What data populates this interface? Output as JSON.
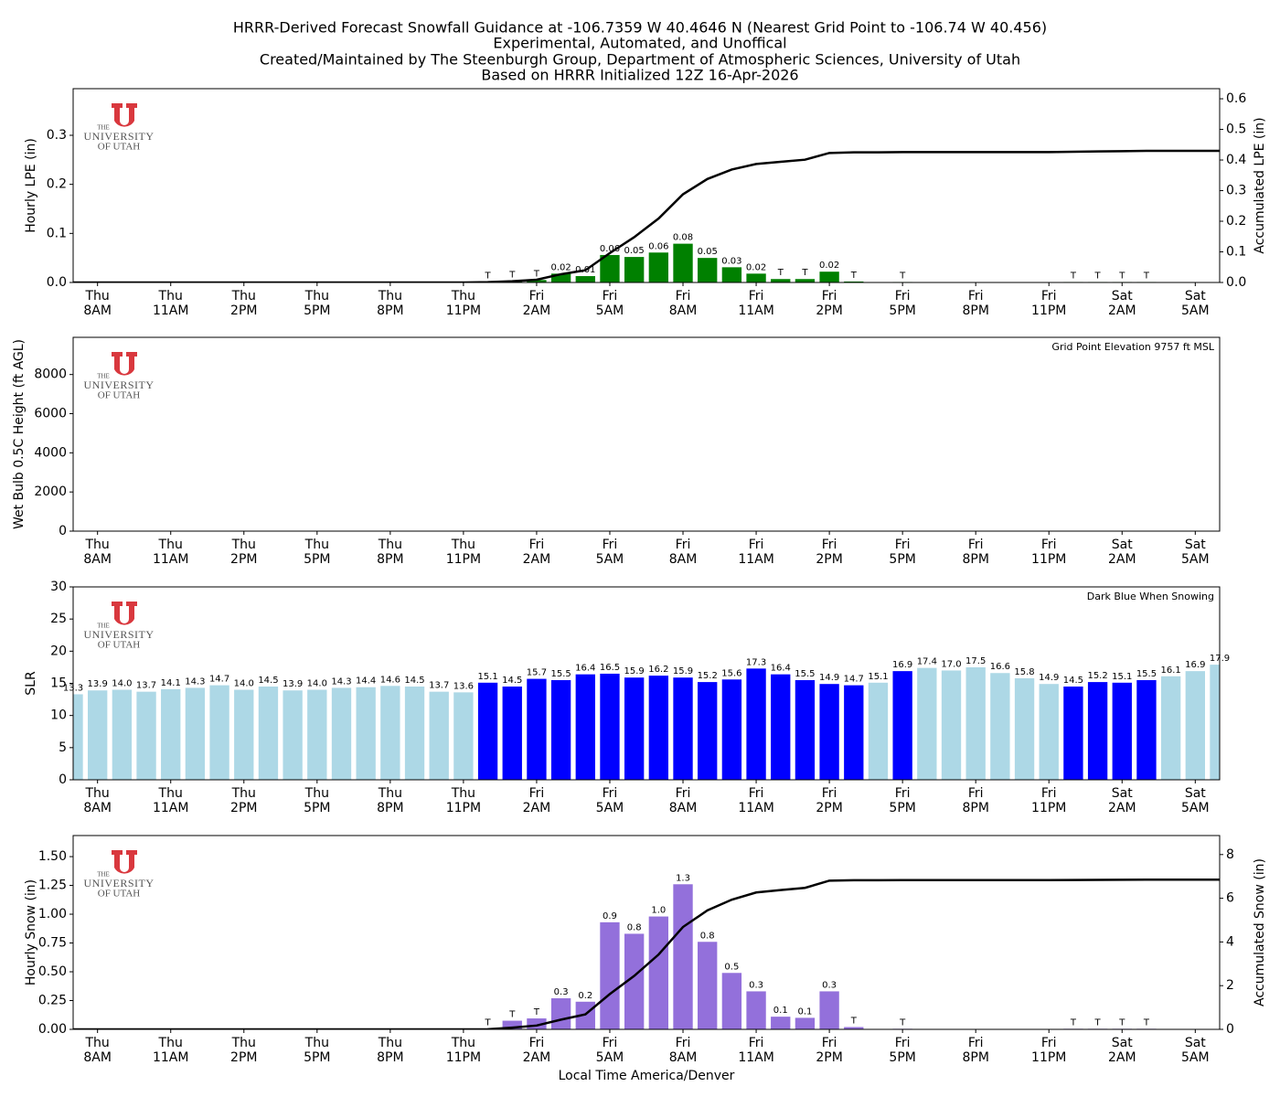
{
  "title": [
    "HRRR-Derived Forecast Snowfall Guidance at -106.7359 W 40.4646 N (Nearest Grid Point to -106.74 W 40.456)",
    "Experimental, Automated, and Unoffical",
    "Created/Maintained by The Steenburgh Group, Department of Atmospheric Sciences, University of Utah",
    "Based on HRRR Initialized 12Z 16-Apr-2026"
  ],
  "logo": [
    "THE",
    "UNIVERSITY",
    "OF UTAH"
  ],
  "chart_data": [
    {
      "type": "bar",
      "ylabel": "Hourly LPE (in)",
      "y2label": "Accumulated LPE (in)",
      "categories": [
        null,
        "Thu\n8AM",
        null,
        null,
        "Thu\n11AM",
        null,
        null,
        "Thu\n2PM",
        null,
        null,
        "Thu\n5PM",
        null,
        null,
        "Thu\n8PM",
        null,
        null,
        "Thu\n11PM",
        null,
        null,
        "Fri\n2AM",
        null,
        null,
        "Fri\n5AM",
        null,
        null,
        "Fri\n8AM",
        null,
        null,
        "Fri\n11AM",
        null,
        null,
        "Fri\n2PM",
        null,
        null,
        "Fri\n5PM",
        null,
        null,
        "Fri\n8PM",
        null,
        null,
        "Fri\n11PM",
        null,
        null,
        "Sat\n2AM",
        null,
        null,
        "Sat\n5AM",
        null
      ],
      "ylim": [
        0,
        0.395
      ],
      "yticks": [
        {
          "value": 0,
          "label": "0.0"
        },
        {
          "value": 0.1,
          "label": "0.1"
        },
        {
          "value": 0.2,
          "label": "0.2"
        },
        {
          "value": 0.3,
          "label": "0.3"
        }
      ],
      "y2lim": [
        0,
        0.633
      ],
      "y2ticks": [
        {
          "value": 0,
          "label": "0.0"
        },
        {
          "value": 0.1,
          "label": "0.1"
        },
        {
          "value": 0.2,
          "label": "0.2"
        },
        {
          "value": 0.3,
          "label": "0.3"
        },
        {
          "value": 0.4,
          "label": "0.4"
        },
        {
          "value": 0.5,
          "label": "0.5"
        },
        {
          "value": 0.6,
          "label": "0.6"
        }
      ],
      "series": [
        {
          "color": "#008000",
          "values": [
            0,
            0,
            0,
            0,
            0,
            0,
            0,
            0,
            0,
            0,
            0,
            0,
            0,
            0,
            0,
            0,
            0,
            0.001,
            0.003,
            0.005,
            0.018,
            0.013,
            0.056,
            0.052,
            0.061,
            0.079,
            0.05,
            0.031,
            0.018,
            0.007,
            0.007,
            0.022,
            0.002,
            0,
            0.001,
            0,
            0,
            0,
            0,
            0,
            0,
            0.001,
            0.001,
            0.001,
            0.001,
            0,
            0,
            0
          ],
          "value_labels": [
            null,
            null,
            null,
            null,
            null,
            null,
            null,
            null,
            null,
            null,
            null,
            null,
            null,
            null,
            null,
            null,
            null,
            "T",
            "T",
            "T",
            "0.02",
            "0.01",
            "0.06",
            "0.05",
            "0.06",
            "0.08",
            "0.05",
            "0.03",
            "0.02",
            "T",
            "T",
            "0.02",
            "T",
            null,
            "T",
            null,
            null,
            null,
            null,
            null,
            null,
            "T",
            "T",
            "T",
            "T",
            null,
            null,
            null
          ]
        },
        {
          "type": "line",
          "axis": "y2",
          "color": "#000000",
          "values": [
            0,
            0,
            0,
            0,
            0,
            0,
            0,
            0,
            0,
            0,
            0,
            0,
            0,
            0,
            0,
            0,
            0,
            0.001,
            0.004,
            0.009,
            0.027,
            0.04,
            0.096,
            0.148,
            0.209,
            0.288,
            0.338,
            0.369,
            0.387,
            0.394,
            0.401,
            0.423,
            0.425,
            0.425,
            0.426,
            0.426,
            0.426,
            0.426,
            0.426,
            0.426,
            0.426,
            0.427,
            0.428,
            0.429,
            0.43,
            0.43,
            0.43,
            0.43
          ]
        }
      ]
    },
    {
      "type": "line",
      "ylabel": "Wet Bulb 0.5C Height (ft AGL)",
      "annotation": "Grid Point Elevation 9757 ft MSL",
      "categories": [
        null,
        "Thu\n8AM",
        null,
        null,
        "Thu\n11AM",
        null,
        null,
        "Thu\n2PM",
        null,
        null,
        "Thu\n5PM",
        null,
        null,
        "Thu\n8PM",
        null,
        null,
        "Thu\n11PM",
        null,
        null,
        "Fri\n2AM",
        null,
        null,
        "Fri\n5AM",
        null,
        null,
        "Fri\n8AM",
        null,
        null,
        "Fri\n11AM",
        null,
        null,
        "Fri\n2PM",
        null,
        null,
        "Fri\n5PM",
        null,
        null,
        "Fri\n8PM",
        null,
        null,
        "Fri\n11PM",
        null,
        null,
        "Sat\n2AM",
        null,
        null,
        "Sat\n5AM",
        null
      ],
      "ylim": [
        0,
        9900
      ],
      "yticks": [
        0,
        2000,
        4000,
        6000,
        8000
      ],
      "series": [
        {
          "color": "#000000",
          "values": [
            null,
            null,
            null,
            null,
            null,
            null,
            null,
            null,
            null,
            null,
            null,
            null,
            null,
            null,
            null,
            null,
            null,
            null,
            null,
            null,
            null,
            null,
            null,
            null,
            null,
            null,
            null,
            null,
            null,
            null,
            null,
            null,
            null,
            null,
            null,
            null,
            null,
            null,
            null,
            null,
            null,
            null,
            null,
            null,
            null,
            null,
            null,
            null
          ]
        }
      ]
    },
    {
      "type": "bar",
      "ylabel": "SLR",
      "annotation": "Dark Blue When Snowing",
      "categories": [
        null,
        "Thu\n8AM",
        null,
        null,
        "Thu\n11AM",
        null,
        null,
        "Thu\n2PM",
        null,
        null,
        "Thu\n5PM",
        null,
        null,
        "Thu\n8PM",
        null,
        null,
        "Thu\n11PM",
        null,
        null,
        "Fri\n2AM",
        null,
        null,
        "Fri\n5AM",
        null,
        null,
        "Fri\n8AM",
        null,
        null,
        "Fri\n11AM",
        null,
        null,
        "Fri\n2PM",
        null,
        null,
        "Fri\n5PM",
        null,
        null,
        "Fri\n8PM",
        null,
        null,
        "Fri\n11PM",
        null,
        null,
        "Sat\n2AM",
        null,
        null,
        "Sat\n5AM",
        null
      ],
      "ylim": [
        0,
        30
      ],
      "yticks": [
        0,
        5,
        10,
        15,
        20,
        25,
        30
      ],
      "series": [
        {
          "values": [
            13.3,
            13.9,
            14.0,
            13.7,
            14.1,
            14.3,
            14.7,
            14.0,
            14.5,
            13.9,
            14.0,
            14.3,
            14.4,
            14.6,
            14.5,
            13.7,
            13.6,
            15.1,
            14.5,
            15.7,
            15.5,
            16.4,
            16.5,
            15.9,
            16.2,
            15.9,
            15.2,
            15.6,
            17.3,
            16.4,
            15.5,
            14.9,
            14.7,
            15.1,
            16.9,
            17.4,
            17.0,
            17.5,
            16.6,
            15.8,
            14.9,
            14.5,
            15.2,
            15.1,
            15.5,
            16.1,
            16.9,
            17.9
          ],
          "value_labels": [
            "13.3",
            "13.9",
            "14.0",
            "13.7",
            "14.1",
            "14.3",
            "14.7",
            "14.0",
            "14.5",
            "13.9",
            "14.0",
            "14.3",
            "14.4",
            "14.6",
            "14.5",
            "13.7",
            "13.6",
            "15.1",
            "14.5",
            "15.7",
            "15.5",
            "16.4",
            "16.5",
            "15.9",
            "16.2",
            "15.9",
            "15.2",
            "15.6",
            "17.3",
            "16.4",
            "15.5",
            "14.9",
            "14.7",
            "15.1",
            "16.9",
            "17.4",
            "17.0",
            "17.5",
            "16.6",
            "15.8",
            "14.9",
            "14.5",
            "15.2",
            "15.1",
            "15.5",
            "16.1",
            "16.9",
            "17.9"
          ],
          "colors": [
            "#add8e6",
            "#add8e6",
            "#add8e6",
            "#add8e6",
            "#add8e6",
            "#add8e6",
            "#add8e6",
            "#add8e6",
            "#add8e6",
            "#add8e6",
            "#add8e6",
            "#add8e6",
            "#add8e6",
            "#add8e6",
            "#add8e6",
            "#add8e6",
            "#add8e6",
            "#0000ff",
            "#0000ff",
            "#0000ff",
            "#0000ff",
            "#0000ff",
            "#0000ff",
            "#0000ff",
            "#0000ff",
            "#0000ff",
            "#0000ff",
            "#0000ff",
            "#0000ff",
            "#0000ff",
            "#0000ff",
            "#0000ff",
            "#0000ff",
            "#add8e6",
            "#0000ff",
            "#add8e6",
            "#add8e6",
            "#add8e6",
            "#add8e6",
            "#add8e6",
            "#add8e6",
            "#0000ff",
            "#0000ff",
            "#0000ff",
            "#0000ff",
            "#add8e6",
            "#add8e6",
            "#add8e6"
          ]
        }
      ]
    },
    {
      "type": "bar",
      "ylabel": "Hourly Snow (in)",
      "y2label": "Accumulated Snow (in)",
      "xlabel": "Local Time America/Denver",
      "categories": [
        null,
        "Thu\n8AM",
        null,
        null,
        "Thu\n11AM",
        null,
        null,
        "Thu\n2PM",
        null,
        null,
        "Thu\n5PM",
        null,
        null,
        "Thu\n8PM",
        null,
        null,
        "Thu\n11PM",
        null,
        null,
        "Fri\n2AM",
        null,
        null,
        "Fri\n5AM",
        null,
        null,
        "Fri\n8AM",
        null,
        null,
        "Fri\n11AM",
        null,
        null,
        "Fri\n2PM",
        null,
        null,
        "Fri\n5PM",
        null,
        null,
        "Fri\n8PM",
        null,
        null,
        "Fri\n11PM",
        null,
        null,
        "Sat\n2AM",
        null,
        null,
        "Sat\n5AM",
        null
      ],
      "ylim": [
        0,
        1.683
      ],
      "yticks": [
        {
          "value": 0,
          "label": "0.00"
        },
        {
          "value": 0.25,
          "label": "0.25"
        },
        {
          "value": 0.5,
          "label": "0.50"
        },
        {
          "value": 0.75,
          "label": "0.75"
        },
        {
          "value": 1,
          "label": "1.00"
        },
        {
          "value": 1.25,
          "label": "1.25"
        },
        {
          "value": 1.5,
          "label": "1.50"
        }
      ],
      "y2lim": [
        0,
        8.87
      ],
      "y2ticks": [
        0,
        2,
        4,
        6,
        8
      ],
      "series": [
        {
          "color": "#9370db",
          "values": [
            0,
            0,
            0,
            0,
            0,
            0,
            0,
            0,
            0,
            0,
            0,
            0,
            0,
            0,
            0,
            0,
            0,
            0.005,
            0.075,
            0.095,
            0.27,
            0.24,
            0.93,
            0.83,
            0.98,
            1.26,
            0.76,
            0.49,
            0.33,
            0.11,
            0.1,
            0.33,
            0.02,
            0,
            0.005,
            0,
            0,
            0,
            0,
            0,
            0,
            0.005,
            0.005,
            0.005,
            0.005,
            0,
            0,
            0
          ],
          "value_labels": [
            null,
            null,
            null,
            null,
            null,
            null,
            null,
            null,
            null,
            null,
            null,
            null,
            null,
            null,
            null,
            null,
            null,
            "T",
            "T",
            "T",
            "0.3",
            "0.2",
            "0.9",
            "0.8",
            "1.0",
            "1.3",
            "0.8",
            "0.5",
            "0.3",
            "0.1",
            "0.1",
            "0.3",
            "T",
            null,
            "T",
            null,
            null,
            null,
            null,
            null,
            null,
            "T",
            "T",
            "T",
            "T",
            null,
            null,
            null
          ]
        },
        {
          "type": "line",
          "axis": "y2",
          "color": "#000000",
          "values": [
            0,
            0,
            0,
            0,
            0,
            0,
            0,
            0,
            0,
            0,
            0,
            0,
            0,
            0,
            0,
            0,
            0,
            0.005,
            0.08,
            0.175,
            0.445,
            0.685,
            1.615,
            2.445,
            3.425,
            4.685,
            5.445,
            5.935,
            6.265,
            6.375,
            6.475,
            6.805,
            6.825,
            6.825,
            6.83,
            6.83,
            6.83,
            6.83,
            6.83,
            6.83,
            6.83,
            6.835,
            6.84,
            6.845,
            6.85,
            6.85,
            6.85,
            6.85
          ]
        }
      ]
    }
  ]
}
